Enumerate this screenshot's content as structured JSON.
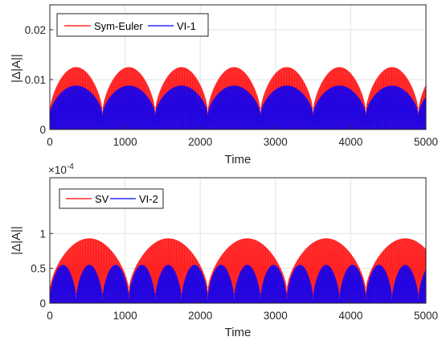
{
  "chart_data": [
    {
      "type": "line",
      "xlabel": "Time",
      "ylabel": "|Δ|A||",
      "xlim": [
        0,
        5000
      ],
      "ylim": [
        0,
        0.025
      ],
      "xticks": [
        0,
        1000,
        2000,
        3000,
        4000,
        5000
      ],
      "xtick_labels": [
        "0",
        "1000",
        "2000",
        "3000",
        "4000",
        "5000"
      ],
      "yticks": [
        0,
        0.01,
        0.02
      ],
      "ytick_labels": [
        "0",
        "0.01",
        "0.02"
      ],
      "exponent_label": "",
      "grid": true,
      "legend_position": "top-left",
      "series": [
        {
          "name": "Sym-Euler",
          "color": "#ff0000",
          "envelope_min": 0.0035,
          "envelope_max": 0.0125,
          "beat_period": 700,
          "beat_phase": 0
        },
        {
          "name": "VI-1",
          "color": "#0000ff",
          "envelope_min": 0.003,
          "envelope_max": 0.0088,
          "beat_period": 700,
          "beat_phase": 0
        }
      ]
    },
    {
      "type": "line",
      "xlabel": "Time",
      "ylabel": "|Δ|A||",
      "xlim": [
        0,
        5000
      ],
      "ylim": [
        0,
        0.00018
      ],
      "xticks": [
        0,
        1000,
        2000,
        3000,
        4000,
        5000
      ],
      "xtick_labels": [
        "0",
        "1000",
        "2000",
        "3000",
        "4000",
        "5000"
      ],
      "yticks": [
        0,
        5e-05,
        0.0001
      ],
      "ytick_labels": [
        "0",
        "0.5",
        "1"
      ],
      "exponent_label": "×10",
      "exponent_power": "-4",
      "grid": true,
      "legend_position": "top-left",
      "series": [
        {
          "name": "SV",
          "color": "#ff0000",
          "envelope_min": 1.8e-05,
          "envelope_max": 9.3e-05,
          "beat_period": 1050,
          "beat_phase": 0
        },
        {
          "name": "VI-2",
          "color": "#0000ff",
          "envelope_min": 6e-06,
          "envelope_max": 5.5e-05,
          "beat_period": 350,
          "beat_phase": 0
        }
      ]
    }
  ]
}
